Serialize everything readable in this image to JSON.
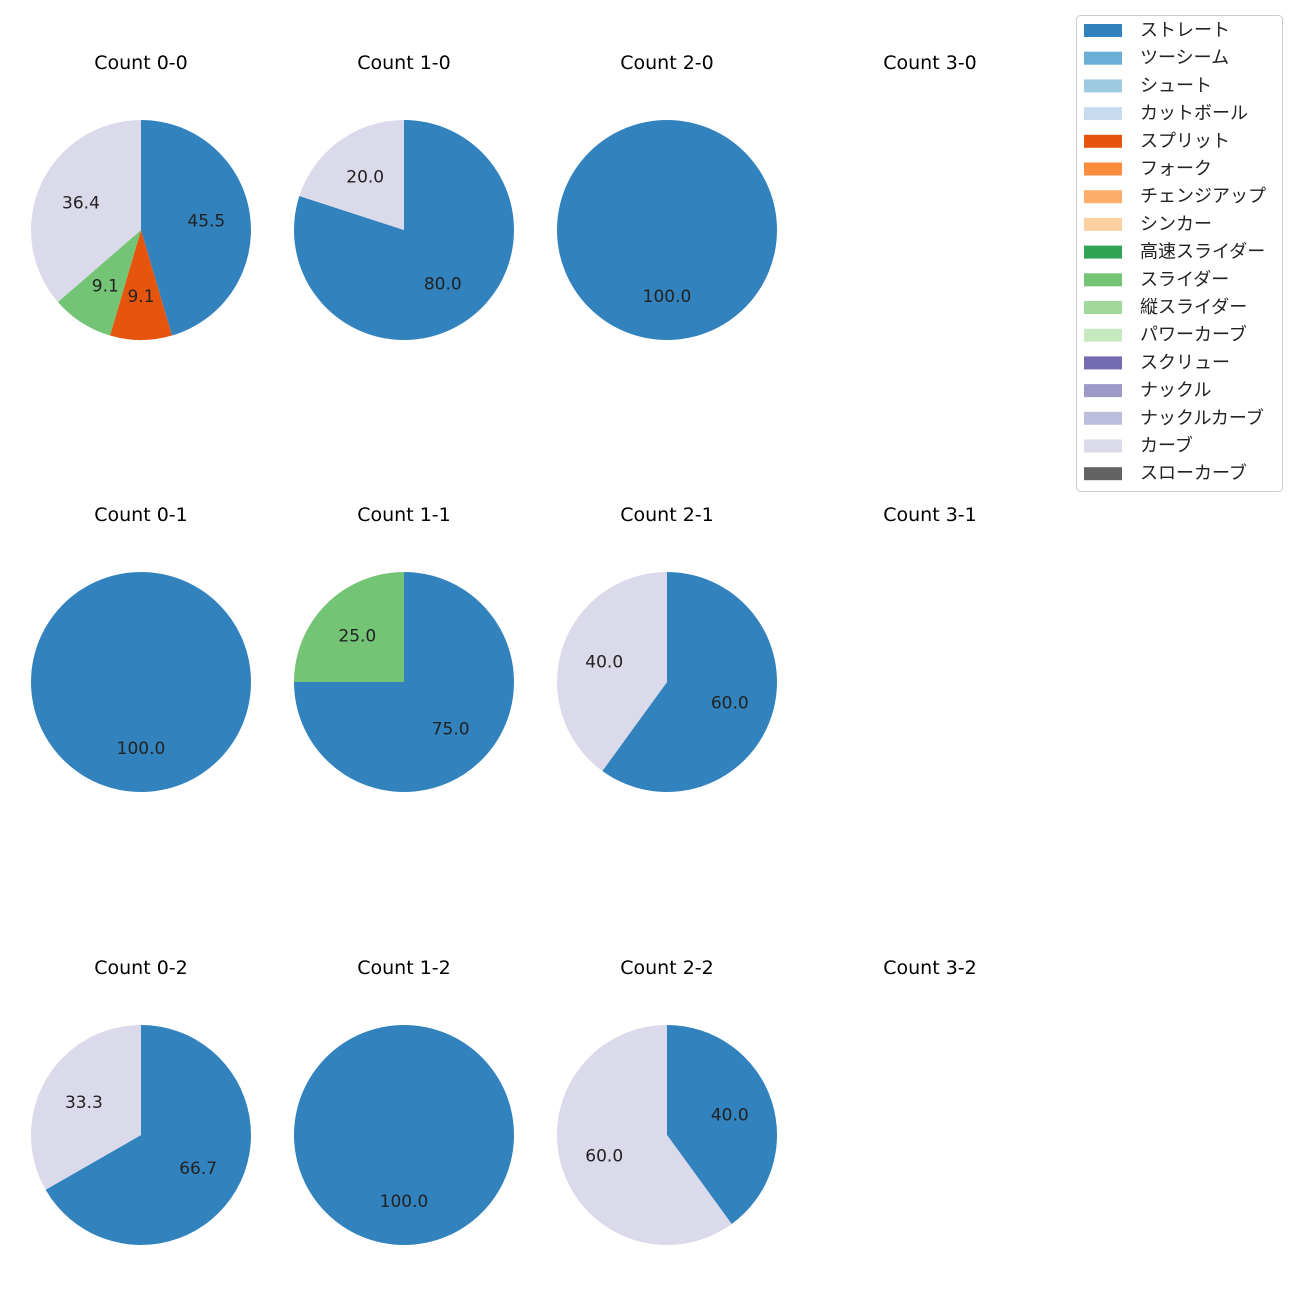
{
  "chart_data": {
    "type": "pie",
    "legend_position": "top-right",
    "legend": [
      {
        "name": "ストレート",
        "color": "#3182bd"
      },
      {
        "name": "ツーシーム",
        "color": "#6baed6"
      },
      {
        "name": "シュート",
        "color": "#9ecae1"
      },
      {
        "name": "カットボール",
        "color": "#c6dbef"
      },
      {
        "name": "スプリット",
        "color": "#e6550d"
      },
      {
        "name": "フォーク",
        "color": "#fd8d3c"
      },
      {
        "name": "チェンジアップ",
        "color": "#fdae6b"
      },
      {
        "name": "シンカー",
        "color": "#fdd0a2"
      },
      {
        "name": "高速スライダー",
        "color": "#31a354"
      },
      {
        "name": "スライダー",
        "color": "#74c476"
      },
      {
        "name": "縦スライダー",
        "color": "#a1d99b"
      },
      {
        "name": "パワーカーブ",
        "color": "#c7e9c0"
      },
      {
        "name": "スクリュー",
        "color": "#756bb1"
      },
      {
        "name": "ナックル",
        "color": "#9e9ac8"
      },
      {
        "name": "ナックルカーブ",
        "color": "#bcbddc"
      },
      {
        "name": "カーブ",
        "color": "#dadaeb"
      },
      {
        "name": "スローカーブ",
        "color": "#636363"
      }
    ],
    "panels": [
      {
        "title": "Count 0-0",
        "slices": [
          {
            "pitch": "ストレート",
            "value": 45.5,
            "label": "45.5"
          },
          {
            "pitch": "スプリット",
            "value": 9.1,
            "label": "9.1"
          },
          {
            "pitch": "スライダー",
            "value": 9.1,
            "label": "9.1"
          },
          {
            "pitch": "カーブ",
            "value": 36.4,
            "label": "36.4"
          }
        ]
      },
      {
        "title": "Count 1-0",
        "slices": [
          {
            "pitch": "ストレート",
            "value": 80.0,
            "label": "80.0"
          },
          {
            "pitch": "カーブ",
            "value": 20.0,
            "label": "20.0"
          }
        ]
      },
      {
        "title": "Count 2-0",
        "slices": [
          {
            "pitch": "ストレート",
            "value": 100.0,
            "label": "100.0"
          }
        ]
      },
      {
        "title": "Count 3-0",
        "slices": []
      },
      {
        "title": "Count 0-1",
        "slices": [
          {
            "pitch": "ストレート",
            "value": 100.0,
            "label": "100.0"
          }
        ]
      },
      {
        "title": "Count 1-1",
        "slices": [
          {
            "pitch": "ストレート",
            "value": 75.0,
            "label": "75.0"
          },
          {
            "pitch": "スライダー",
            "value": 25.0,
            "label": "25.0"
          }
        ]
      },
      {
        "title": "Count 2-1",
        "slices": [
          {
            "pitch": "ストレート",
            "value": 60.0,
            "label": "60.0"
          },
          {
            "pitch": "カーブ",
            "value": 40.0,
            "label": "40.0"
          }
        ]
      },
      {
        "title": "Count 3-1",
        "slices": []
      },
      {
        "title": "Count 0-2",
        "slices": [
          {
            "pitch": "ストレート",
            "value": 66.7,
            "label": "66.7"
          },
          {
            "pitch": "カーブ",
            "value": 33.3,
            "label": "33.3"
          }
        ]
      },
      {
        "title": "Count 1-2",
        "slices": [
          {
            "pitch": "ストレート",
            "value": 100.0,
            "label": "100.0"
          }
        ]
      },
      {
        "title": "Count 2-2",
        "slices": [
          {
            "pitch": "ストレート",
            "value": 40.0,
            "label": "40.0"
          },
          {
            "pitch": "カーブ",
            "value": 60.0,
            "label": "60.0"
          }
        ]
      },
      {
        "title": "Count 3-2",
        "slices": []
      }
    ]
  }
}
